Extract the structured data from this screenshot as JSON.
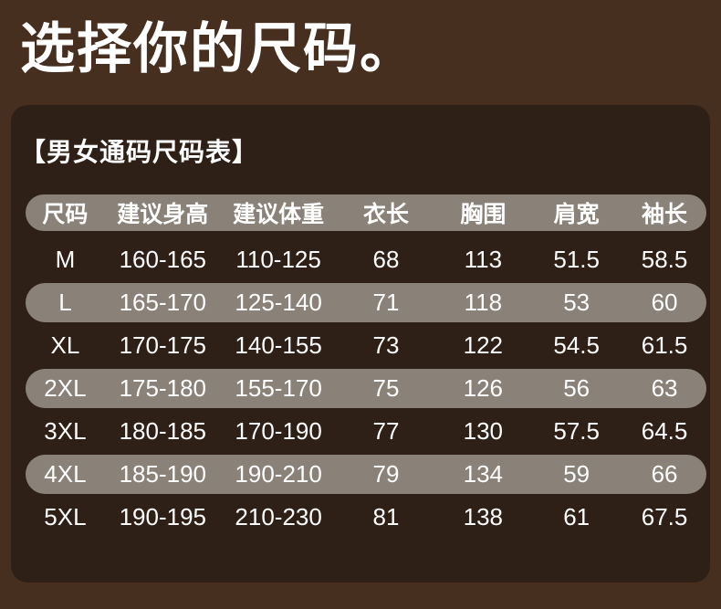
{
  "heading": {
    "title": "选择你的尺码。"
  },
  "card": {
    "title": "【男女通码尺码表】"
  },
  "colors": {
    "background": "#472f20",
    "card": "#2f2017",
    "row_pill": "#8a8178",
    "text": "#ffffff"
  },
  "table": {
    "columns": [
      "尺码",
      "建议身高",
      "建议体重",
      "衣长",
      "胸围",
      "肩宽",
      "袖长"
    ],
    "rows": [
      [
        "M",
        "160-165",
        "110-125",
        "68",
        "113",
        "51.5",
        "58.5"
      ],
      [
        "L",
        "165-170",
        "125-140",
        "71",
        "118",
        "53",
        "60"
      ],
      [
        "XL",
        "170-175",
        "140-155",
        "73",
        "122",
        "54.5",
        "61.5"
      ],
      [
        "2XL",
        "175-180",
        "155-170",
        "75",
        "126",
        "56",
        "63"
      ],
      [
        "3XL",
        "180-185",
        "170-190",
        "77",
        "130",
        "57.5",
        "64.5"
      ],
      [
        "4XL",
        "185-190",
        "190-210",
        "79",
        "134",
        "59",
        "66"
      ],
      [
        "5XL",
        "190-195",
        "210-230",
        "81",
        "138",
        "61",
        "67.5"
      ]
    ],
    "striped_row_sizes": [
      "L",
      "2XL",
      "4XL"
    ]
  }
}
